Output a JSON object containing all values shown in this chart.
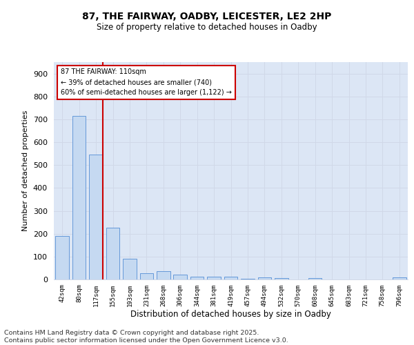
{
  "title_line1": "87, THE FAIRWAY, OADBY, LEICESTER, LE2 2HP",
  "title_line2": "Size of property relative to detached houses in Oadby",
  "xlabel": "Distribution of detached houses by size in Oadby",
  "ylabel": "Number of detached properties",
  "categories": [
    "42sqm",
    "80sqm",
    "117sqm",
    "155sqm",
    "193sqm",
    "231sqm",
    "268sqm",
    "306sqm",
    "344sqm",
    "381sqm",
    "419sqm",
    "457sqm",
    "494sqm",
    "532sqm",
    "570sqm",
    "608sqm",
    "645sqm",
    "683sqm",
    "721sqm",
    "758sqm",
    "796sqm"
  ],
  "values": [
    190,
    715,
    545,
    225,
    90,
    27,
    37,
    22,
    12,
    11,
    12,
    3,
    9,
    5,
    0,
    5,
    0,
    0,
    0,
    0,
    8
  ],
  "bar_color": "#c5d9f1",
  "bar_edge_color": "#538dd5",
  "red_line_index": 2,
  "annotation_line1": "87 THE FAIRWAY: 110sqm",
  "annotation_line2": "← 39% of detached houses are smaller (740)",
  "annotation_line3": "60% of semi-detached houses are larger (1,122) →",
  "annotation_box_facecolor": "#ffffff",
  "annotation_box_edgecolor": "#cc0000",
  "red_line_color": "#cc0000",
  "grid_color": "#d0d8e8",
  "plot_bg_color": "#dce6f5",
  "ylim": [
    0,
    950
  ],
  "yticks": [
    0,
    100,
    200,
    300,
    400,
    500,
    600,
    700,
    800,
    900
  ],
  "footer_line1": "Contains HM Land Registry data © Crown copyright and database right 2025.",
  "footer_line2": "Contains public sector information licensed under the Open Government Licence v3.0."
}
